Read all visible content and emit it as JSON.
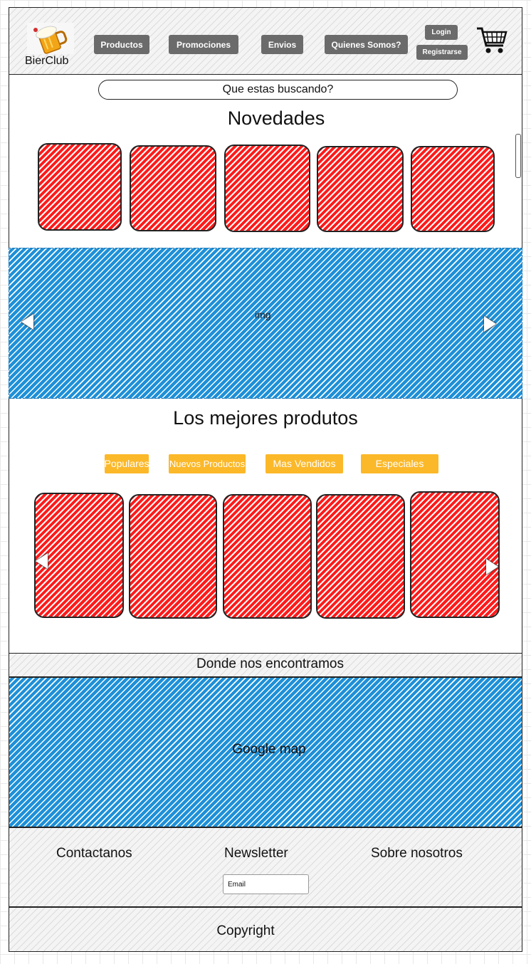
{
  "header": {
    "logo_text": "BierClub",
    "logo_icon": "beer-mug-icon",
    "nav": [
      "Productos",
      "Promociones",
      "Envios",
      "Quienes Somos?"
    ],
    "login_label": "Login",
    "register_label": "Registrarse",
    "cart_icon": "shopping-cart-icon"
  },
  "search": {
    "placeholder": "Que estas buscando?"
  },
  "novedades": {
    "title": "Novedades"
  },
  "banner": {
    "label": "img"
  },
  "best": {
    "title": "Los mejores produtos",
    "tabs": [
      "Populares",
      "Nuevos Productos",
      "Mas Vendidos",
      "Especiales"
    ]
  },
  "location": {
    "title": "Donde nos encontramos",
    "map_label": "Google map"
  },
  "footer": {
    "contact": "Contactanos",
    "newsletter": "Newsletter",
    "about": "Sobre nosotros",
    "email_placeholder": "Email",
    "copyright": "Copyright"
  },
  "colors": {
    "nav_button": "#6b6b6b",
    "tab_button": "#fbb829",
    "product_placeholder": "#ff1a1a",
    "image_placeholder": "#1e90d8"
  }
}
